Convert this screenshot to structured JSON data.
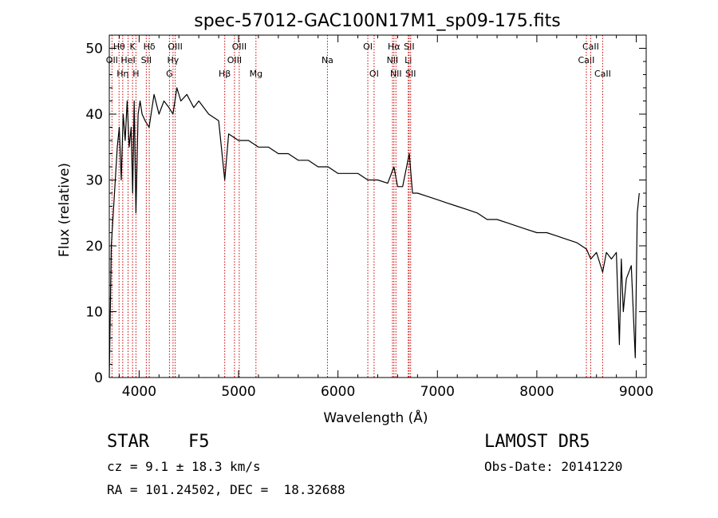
{
  "chart_data": {
    "type": "line",
    "title": "spec-57012-GAC100N17M1_sp09-175.fits",
    "xlabel": "Wavelength (Å)",
    "ylabel": "Flux (relative)",
    "xlim": [
      3700,
      9100
    ],
    "ylim": [
      0,
      52
    ],
    "xticks": [
      4000,
      5000,
      6000,
      7000,
      8000,
      9000
    ],
    "yticks": [
      0,
      10,
      20,
      30,
      40,
      50
    ],
    "grid": false,
    "line_color": "#000000",
    "marker_color": "#cc0000",
    "series": [
      {
        "x": [
          3700,
          3720,
          3740,
          3760,
          3780,
          3800,
          3820,
          3840,
          3860,
          3880,
          3900,
          3920,
          3935,
          3950,
          3968,
          3990,
          4010,
          4030,
          4060,
          4100,
          4150,
          4200,
          4250,
          4300,
          4340,
          4380,
          4420,
          4480,
          4550,
          4600,
          4700,
          4800,
          4861,
          4900,
          5000,
          5100,
          5200,
          5300,
          5400,
          5500,
          5600,
          5700,
          5800,
          5900,
          6000,
          6100,
          6200,
          6300,
          6400,
          6500,
          6563,
          6600,
          6650,
          6717,
          6750,
          6800,
          6900,
          7000,
          7100,
          7200,
          7300,
          7400,
          7500,
          7600,
          7700,
          7800,
          7900,
          8000,
          8100,
          8200,
          8300,
          8400,
          8450,
          8500,
          8542,
          8600,
          8662,
          8700,
          8750,
          8800,
          8830,
          8850,
          8870,
          8900,
          8950,
          8990,
          9010,
          9030
        ],
        "y": [
          0,
          20,
          25,
          30,
          35,
          38,
          30,
          40,
          36,
          42,
          35,
          38,
          28,
          42,
          25,
          40,
          42,
          40,
          39,
          38,
          43,
          40,
          42,
          41,
          40,
          44,
          42,
          43,
          41,
          42,
          40,
          39,
          30,
          37,
          36,
          36,
          35,
          35,
          34,
          34,
          33,
          33,
          32,
          32,
          31,
          31,
          31,
          30,
          30,
          29.5,
          32,
          29,
          29,
          34,
          28,
          28,
          27.5,
          27,
          26.5,
          26,
          25.5,
          25,
          24,
          24,
          23.5,
          23,
          22.5,
          22,
          22,
          21.5,
          21,
          20.5,
          20,
          19.5,
          18,
          19,
          16,
          19,
          18,
          19,
          5,
          18,
          10,
          15,
          17,
          3,
          25,
          28
        ]
      }
    ],
    "line_markers": [
      {
        "name": "OII",
        "x": 3727,
        "row": 1
      },
      {
        "name": "Hθ",
        "x": 3798,
        "row": 0
      },
      {
        "name": "Hη",
        "x": 3835,
        "row": 2
      },
      {
        "name": "HeI",
        "x": 3889,
        "row": 1
      },
      {
        "name": "K",
        "x": 3934,
        "row": 0
      },
      {
        "name": "H",
        "x": 3968,
        "row": 2
      },
      {
        "name": "SII",
        "x": 4072,
        "row": 1
      },
      {
        "name": "Hδ",
        "x": 4102,
        "row": 0
      },
      {
        "name": "G",
        "x": 4305,
        "row": 2
      },
      {
        "name": "Hγ",
        "x": 4341,
        "row": 1
      },
      {
        "name": "OIII",
        "x": 4363,
        "row": 0
      },
      {
        "name": "Hβ",
        "x": 4861,
        "row": 2
      },
      {
        "name": "OIII",
        "x": 4959,
        "row": 1
      },
      {
        "name": "OIII",
        "x": 5007,
        "row": 0
      },
      {
        "name": "Mg",
        "x": 5175,
        "row": 2
      },
      {
        "name": "Na",
        "x": 5894,
        "row": 1
      },
      {
        "name": "OI",
        "x": 6300,
        "row": 0
      },
      {
        "name": "OI",
        "x": 6363,
        "row": 2
      },
      {
        "name": "NII",
        "x": 6548,
        "row": 1
      },
      {
        "name": "Hα",
        "x": 6563,
        "row": 0
      },
      {
        "name": "NII",
        "x": 6583,
        "row": 2
      },
      {
        "name": "Li",
        "x": 6707,
        "row": 1
      },
      {
        "name": "SII",
        "x": 6716,
        "row": 0
      },
      {
        "name": "SII",
        "x": 6731,
        "row": 2
      },
      {
        "name": "CaII",
        "x": 8498,
        "row": 1
      },
      {
        "name": "CaII",
        "x": 8542,
        "row": 0
      },
      {
        "name": "CaII",
        "x": 8662,
        "row": 2
      }
    ]
  },
  "info": {
    "class_label": "STAR",
    "subclass": "F5",
    "survey": "LAMOST DR5",
    "cz": "cz = 9.1 ± 18.3 km/s",
    "obs_date": "Obs-Date: 20141220",
    "coords": "RA = 101.24502, DEC =  18.32688"
  }
}
